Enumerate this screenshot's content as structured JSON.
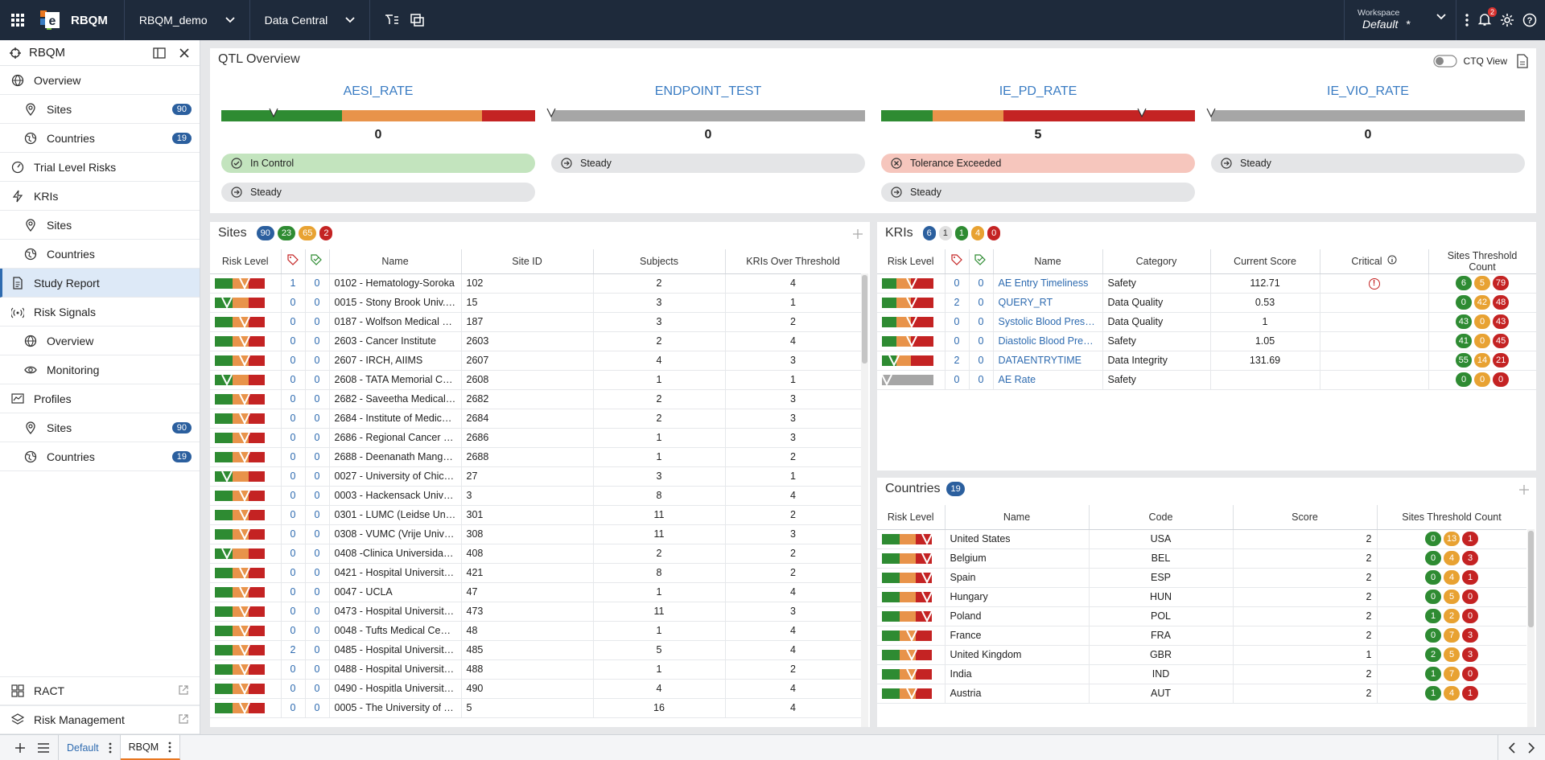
{
  "topbar": {
    "app": "RBQM",
    "project": "RBQM_demo",
    "data_menu": "Data Central",
    "workspace_label": "Workspace",
    "workspace_value": "Default",
    "workspace_star": "*",
    "notif_count": "2"
  },
  "sidebar": {
    "title": "RBQM",
    "items": [
      {
        "label": "Overview",
        "icon": "globe",
        "sub": false
      },
      {
        "label": "Sites",
        "icon": "pin",
        "sub": true,
        "badge": "90"
      },
      {
        "label": "Countries",
        "icon": "globe-alt",
        "sub": true,
        "badge": "19"
      },
      {
        "label": "Trial Level Risks",
        "icon": "gauge",
        "sub": false
      },
      {
        "label": "KRIs",
        "icon": "bolt",
        "sub": false
      },
      {
        "label": "Sites",
        "icon": "pin",
        "sub": true
      },
      {
        "label": "Countries",
        "icon": "globe-alt",
        "sub": true
      },
      {
        "label": "Study Report",
        "icon": "doc",
        "sub": false,
        "active": true
      },
      {
        "label": "Risk Signals",
        "icon": "signal",
        "sub": false
      },
      {
        "label": "Overview",
        "icon": "globe",
        "sub": true
      },
      {
        "label": "Monitoring",
        "icon": "eye",
        "sub": true
      },
      {
        "label": "Profiles",
        "icon": "chart",
        "sub": false
      },
      {
        "label": "Sites",
        "icon": "pin",
        "sub": true,
        "badge": "90"
      },
      {
        "label": "Countries",
        "icon": "globe-alt",
        "sub": true,
        "badge": "19"
      }
    ],
    "bottom": [
      {
        "label": "RACT"
      },
      {
        "label": "Risk Management"
      }
    ]
  },
  "tabs": {
    "default": "Default",
    "rbqm": "RBQM"
  },
  "qtl": {
    "title": "QTL Overview",
    "ctq_label": "CTQ View",
    "items": [
      {
        "name": "AESI_RATE",
        "value": "0",
        "status": [
          "In Control",
          "Steady"
        ],
        "status_type": [
          "green",
          "grey"
        ]
      },
      {
        "name": "ENDPOINT_TEST",
        "value": "0",
        "status": [
          "Steady"
        ],
        "status_type": [
          "grey"
        ]
      },
      {
        "name": "IE_PD_RATE",
        "value": "5",
        "status": [
          "Tolerance Exceeded",
          "Steady"
        ],
        "status_type": [
          "red",
          "grey"
        ]
      },
      {
        "name": "IE_VIO_RATE",
        "value": "0",
        "status": [
          "Steady"
        ],
        "status_type": [
          "grey"
        ]
      }
    ]
  },
  "sites": {
    "title": "Sites",
    "counts": [
      "90",
      "23",
      "65",
      "2"
    ],
    "columns": [
      "Risk Level",
      "",
      "",
      "Name",
      "Site ID",
      "Subjects",
      "KRIs Over Threshold"
    ],
    "rows": [
      [
        "o",
        "1",
        "0",
        "0102 - Hematology-Soroka",
        "102",
        "2",
        "4"
      ],
      [
        "g",
        "0",
        "0",
        "0015 - Stony Brook Univ. H...",
        "15",
        "3",
        "1"
      ],
      [
        "o",
        "0",
        "0",
        "0187 - Wolfson Medical C...",
        "187",
        "3",
        "2"
      ],
      [
        "o",
        "0",
        "0",
        "2603 - Cancer Institute",
        "2603",
        "2",
        "4"
      ],
      [
        "o",
        "0",
        "0",
        "2607 - IRCH, AIIMS",
        "2607",
        "4",
        "3"
      ],
      [
        "g",
        "0",
        "0",
        "2608 - TATA Memorial Ce...",
        "2608",
        "1",
        "1"
      ],
      [
        "o",
        "0",
        "0",
        "2682 - Saveetha Medical ...",
        "2682",
        "2",
        "3"
      ],
      [
        "o",
        "0",
        "0",
        "2684 - Institute of Medical...",
        "2684",
        "2",
        "3"
      ],
      [
        "o",
        "0",
        "0",
        "2686 - Regional Cancer Ce...",
        "2686",
        "1",
        "3"
      ],
      [
        "o",
        "0",
        "0",
        "2688 - Deenanath Manges...",
        "2688",
        "1",
        "2"
      ],
      [
        "g",
        "0",
        "0",
        "0027 - University of Chica...",
        "27",
        "3",
        "1"
      ],
      [
        "o",
        "0",
        "0",
        "0003 - Hackensack Univer...",
        "3",
        "8",
        "4"
      ],
      [
        "o",
        "0",
        "0",
        "0301 - LUMC (Leidse Univ...",
        "301",
        "11",
        "2"
      ],
      [
        "o",
        "0",
        "0",
        "0308 - VUMC (Vrije Univer...",
        "308",
        "11",
        "3"
      ],
      [
        "g",
        "0",
        "0",
        "0408 -Clinica Universidad ...",
        "408",
        "2",
        "2"
      ],
      [
        "o",
        "0",
        "0",
        "0421 - Hospital Universitar...",
        "421",
        "8",
        "2"
      ],
      [
        "o",
        "0",
        "0",
        "0047 - UCLA",
        "47",
        "1",
        "4"
      ],
      [
        "o",
        "0",
        "0",
        "0473 - Hospital Universitar...",
        "473",
        "11",
        "3"
      ],
      [
        "o",
        "0",
        "0",
        "0048 - Tufts Medical Center",
        "48",
        "1",
        "4"
      ],
      [
        "o",
        "2",
        "0",
        "0485 - Hospital Universitar...",
        "485",
        "5",
        "4"
      ],
      [
        "o",
        "0",
        "0",
        "0488 - Hospital Universitar...",
        "488",
        "1",
        "2"
      ],
      [
        "o",
        "0",
        "0",
        "0490 - Hospitla Universitar...",
        "490",
        "4",
        "4"
      ],
      [
        "o",
        "0",
        "0",
        "0005 - The University of Te...",
        "5",
        "16",
        "4"
      ]
    ]
  },
  "kris": {
    "title": "KRIs",
    "counts": [
      "6",
      "1",
      "1",
      "4",
      "0"
    ],
    "columns": [
      "Risk Level",
      "",
      "",
      "Name",
      "Category",
      "Current Score",
      "Critical",
      "Sites Threshold Count"
    ],
    "rows": [
      [
        "o",
        "0",
        "0",
        "AE Entry Timeliness",
        "Safety",
        "112.71",
        "!",
        "6",
        "5",
        "79"
      ],
      [
        "o",
        "2",
        "0",
        "QUERY_RT",
        "Data Quality",
        "0.53",
        "",
        "0",
        "42",
        "48"
      ],
      [
        "o",
        "0",
        "0",
        "Systolic Blood Pressure",
        "Data Quality",
        "1",
        "",
        "43",
        "0",
        "43"
      ],
      [
        "o",
        "0",
        "0",
        "Diastolic Blood Pressure",
        "Safety",
        "1.05",
        "",
        "41",
        "0",
        "45"
      ],
      [
        "g",
        "2",
        "0",
        "DATAENTRYTIME",
        "Data Integrity",
        "131.69",
        "",
        "55",
        "14",
        "21"
      ],
      [
        "n",
        "0",
        "0",
        "AE Rate",
        "Safety",
        "",
        "",
        "0",
        "0",
        "0"
      ]
    ]
  },
  "countries": {
    "title": "Countries",
    "count": "19",
    "columns": [
      "Risk Level",
      "Name",
      "Code",
      "Score",
      "Sites Threshold Count"
    ],
    "rows": [
      [
        "r",
        "United States",
        "USA",
        "2",
        "0",
        "13",
        "1"
      ],
      [
        "r",
        "Belgium",
        "BEL",
        "2",
        "0",
        "4",
        "3"
      ],
      [
        "r",
        "Spain",
        "ESP",
        "2",
        "0",
        "4",
        "1"
      ],
      [
        "r",
        "Hungary",
        "HUN",
        "2",
        "0",
        "5",
        "0"
      ],
      [
        "r",
        "Poland",
        "POL",
        "2",
        "1",
        "2",
        "0"
      ],
      [
        "o",
        "France",
        "FRA",
        "2",
        "0",
        "7",
        "3"
      ],
      [
        "o",
        "United Kingdom",
        "GBR",
        "1",
        "2",
        "5",
        "3"
      ],
      [
        "o",
        "India",
        "IND",
        "2",
        "1",
        "7",
        "0"
      ],
      [
        "o",
        "Austria",
        "AUT",
        "2",
        "1",
        "4",
        "1"
      ]
    ]
  }
}
